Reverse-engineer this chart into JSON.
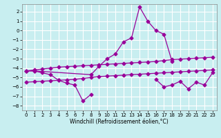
{
  "xlabel": "Windchill (Refroidissement éolien,°C)",
  "background_color": "#c8eef0",
  "grid_color": "#ffffff",
  "line_color": "#990099",
  "ylim": [
    -8.5,
    2.8
  ],
  "xlim": [
    -0.5,
    23.5
  ],
  "yticks": [
    2,
    1,
    0,
    -1,
    -2,
    -3,
    -4,
    -5,
    -6,
    -7,
    -8
  ],
  "xticks": [
    0,
    1,
    2,
    3,
    4,
    5,
    6,
    7,
    8,
    9,
    10,
    11,
    12,
    13,
    14,
    15,
    16,
    17,
    18,
    19,
    20,
    21,
    22,
    23
  ],
  "line_spike_x": [
    0,
    1,
    8,
    9,
    10,
    11,
    12,
    13,
    14,
    15,
    16,
    17,
    18
  ],
  "line_spike_y": [
    -4.3,
    -4.3,
    -4.7,
    -3.8,
    -3.0,
    -2.5,
    -1.2,
    -0.8,
    2.5,
    1.0,
    0.0,
    -0.4,
    -3.3
  ],
  "line_upper_x": [
    0,
    1,
    2,
    3,
    4,
    5,
    6,
    7,
    8,
    9,
    10,
    11,
    12,
    13,
    14,
    15,
    16,
    17,
    18,
    19,
    20,
    21,
    22,
    23
  ],
  "line_upper_y": [
    -4.3,
    -4.2,
    -4.1,
    -4.0,
    -3.9,
    -3.85,
    -3.8,
    -3.75,
    -3.7,
    -3.65,
    -3.6,
    -3.55,
    -3.5,
    -3.45,
    -3.4,
    -3.35,
    -3.3,
    -3.2,
    -3.1,
    -3.05,
    -3.0,
    -2.95,
    -2.9,
    -2.85
  ],
  "line_mid_x": [
    0,
    1,
    2,
    3,
    4,
    5,
    6,
    7,
    8,
    9,
    10,
    11,
    12,
    13,
    14,
    15,
    16,
    17,
    18,
    19,
    20,
    21,
    22,
    23
  ],
  "line_mid_y": [
    -5.5,
    -5.45,
    -5.4,
    -5.35,
    -5.3,
    -5.25,
    -5.2,
    -5.1,
    -5.0,
    -4.9,
    -4.85,
    -4.8,
    -4.75,
    -4.7,
    -4.65,
    -4.6,
    -4.55,
    -4.5,
    -4.45,
    -4.4,
    -4.35,
    -4.3,
    -4.25,
    -4.2
  ],
  "line_low_x": [
    0,
    1,
    2,
    3,
    4,
    5,
    6,
    7,
    8,
    16,
    17,
    18,
    19,
    20,
    21,
    22,
    23
  ],
  "line_low_y": [
    -4.3,
    -4.3,
    -4.5,
    -4.7,
    -5.3,
    -5.6,
    -5.8,
    -7.5,
    -6.8,
    -5.2,
    -6.0,
    -5.8,
    -5.4,
    -6.2,
    -5.5,
    -5.8,
    -4.5
  ]
}
